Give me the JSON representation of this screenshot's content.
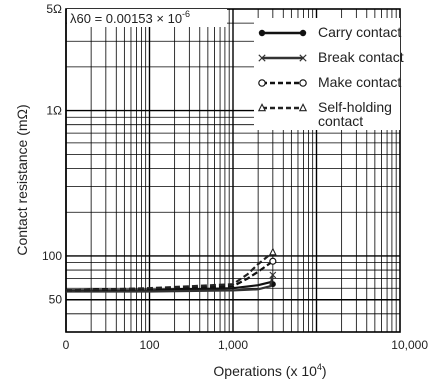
{
  "chart_data": {
    "type": "line",
    "annotation": "λ60 = 0.00153 × 10",
    "annotation_exp": "-6",
    "xlabel": "Operations (x 10",
    "xlabel_exp": "4",
    "xlabel_close": ")",
    "ylabel": "Contact resistance (mΩ)",
    "x_scale": "log",
    "y_scale": "log",
    "xlim": [
      1,
      10000
    ],
    "ylim": [
      30,
      5000
    ],
    "x_ticks": [
      {
        "value": 1,
        "label": "0"
      },
      {
        "value": 10,
        "label": "100"
      },
      {
        "value": 100,
        "label": "1,000"
      },
      {
        "value": 1000,
        "label": "10,000"
      }
    ],
    "y_ticks": [
      {
        "value": 50,
        "label": "50"
      },
      {
        "value": 100,
        "label": "100"
      },
      {
        "value": 1000,
        "label": "1Ω"
      },
      {
        "value": 5000,
        "label": "5Ω"
      }
    ],
    "grid": true,
    "legend_position": "top-right",
    "series": [
      {
        "name": "Carry contact",
        "marker": "filled-circle",
        "dash": "solid",
        "color": "#111111",
        "x": [
          1,
          10,
          100,
          200,
          280,
          300
        ],
        "y": [
          58,
          58,
          60,
          63,
          66,
          64
        ]
      },
      {
        "name": "Break contact",
        "marker": "x",
        "dash": "solid",
        "color": "#333333",
        "x": [
          1,
          10,
          100,
          200,
          280,
          300
        ],
        "y": [
          57,
          57,
          58,
          59,
          62,
          74
        ]
      },
      {
        "name": "Make contact",
        "marker": "open-circle",
        "dash": "dashed",
        "color": "#111111",
        "x": [
          1,
          10,
          100,
          150,
          200,
          300
        ],
        "y": [
          58,
          59,
          62,
          70,
          78,
          92
        ]
      },
      {
        "name": "Self-holding contact",
        "marker": "open-triangle",
        "dash": "dashed",
        "color": "#222222",
        "x": [
          1,
          10,
          100,
          150,
          200,
          300
        ],
        "y": [
          58,
          60,
          64,
          75,
          88,
          106
        ]
      }
    ]
  }
}
